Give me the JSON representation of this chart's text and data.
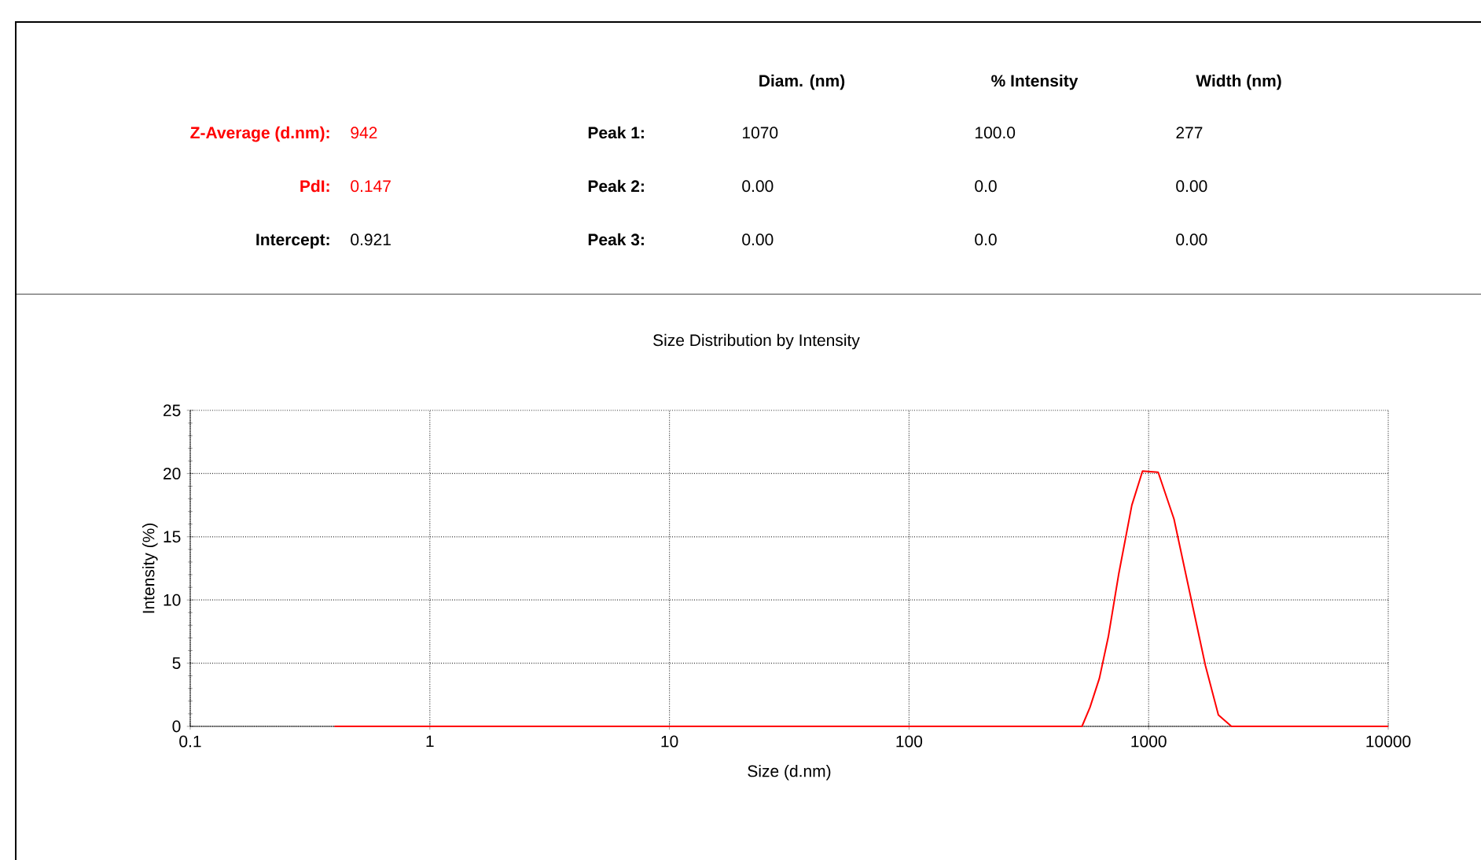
{
  "chart_data": {
    "type": "line",
    "title": "Size Distribution by Intensity",
    "xlabel": "Size (d.nm)",
    "ylabel": "Intensity (%)",
    "log": "x",
    "grid": true,
    "xlim": [
      0.1,
      10000
    ],
    "xticks": [
      0.1,
      1,
      10,
      100,
      1000,
      10000
    ],
    "ylim": [
      0,
      25
    ],
    "yticks": [
      0,
      5,
      10,
      15,
      20,
      25
    ],
    "series": [
      {
        "color": "#ff0000",
        "x": [
          0.4,
          527,
          569,
          623,
          679,
          751,
          851,
          943,
          1096,
          1276,
          1484,
          1726,
          1955,
          2217,
          10000
        ],
        "values": [
          0,
          0,
          1.5,
          3.8,
          7.1,
          12.1,
          17.5,
          20.2,
          20.1,
          16.4,
          10.6,
          4.8,
          0.9,
          0,
          0
        ]
      }
    ],
    "annotations": [
      "Diam. (nm)",
      "% Intensity",
      "Width (nm)",
      "Z-Average (d.nm):",
      "942",
      "Peak 1:",
      "1070",
      "100.0",
      "277",
      "PdI:",
      "0.147",
      "Peak 2:",
      "0.00",
      "0.0",
      "0.00",
      "Intercept:",
      "0.921",
      "Peak 3:",
      "0.00",
      "0.0",
      "0.00"
    ]
  }
}
